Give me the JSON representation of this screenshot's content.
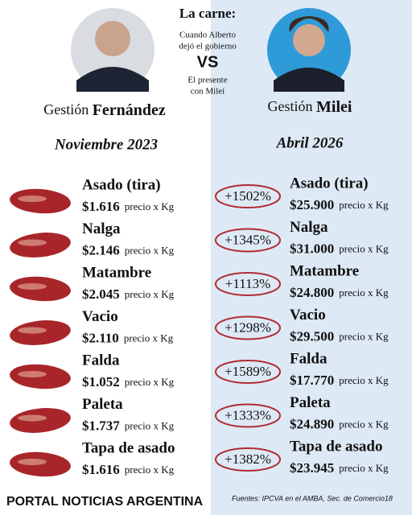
{
  "header": {
    "title": "La carne:",
    "before_line1": "Cuando Alberto",
    "before_line2": "dejó el gobierno",
    "vs": "VS",
    "after_line1": "El presente",
    "after_line2": "con Milei"
  },
  "left": {
    "prefix": "Gestión",
    "name": "Fernández",
    "date": "Noviembre 2023"
  },
  "right": {
    "prefix": "Gestión",
    "name": "Milei",
    "date": "Abril 2026"
  },
  "unit": "precio x Kg",
  "rows": [
    {
      "name": "Asado (tira)",
      "before": "$1.616",
      "change": "+1502%",
      "after": "$25.900"
    },
    {
      "name": "Nalga",
      "before": "$2.146",
      "change": "+1345%",
      "after": "$31.000"
    },
    {
      "name": "Matambre",
      "before": "$2.045",
      "change": "+1113%",
      "after": "$24.800"
    },
    {
      "name": "Vacio",
      "before": "$2.110",
      "change": "+1298%",
      "after": "$29.500"
    },
    {
      "name": "Falda",
      "before": "$1.052",
      "change": "+1589%",
      "after": "$17.770"
    },
    {
      "name": "Paleta",
      "before": "$1.737",
      "change": "+1333%",
      "after": "$24.890"
    },
    {
      "name": "Tapa de asado",
      "before": "$1.616",
      "change": "+1382%",
      "after": "$23.945"
    }
  ],
  "footer": {
    "brand": "PORTAL NOTICIAS ARGENTINA",
    "source": "Fuentes: IPCVA en el AMBA, Sec. de Comercio18"
  }
}
